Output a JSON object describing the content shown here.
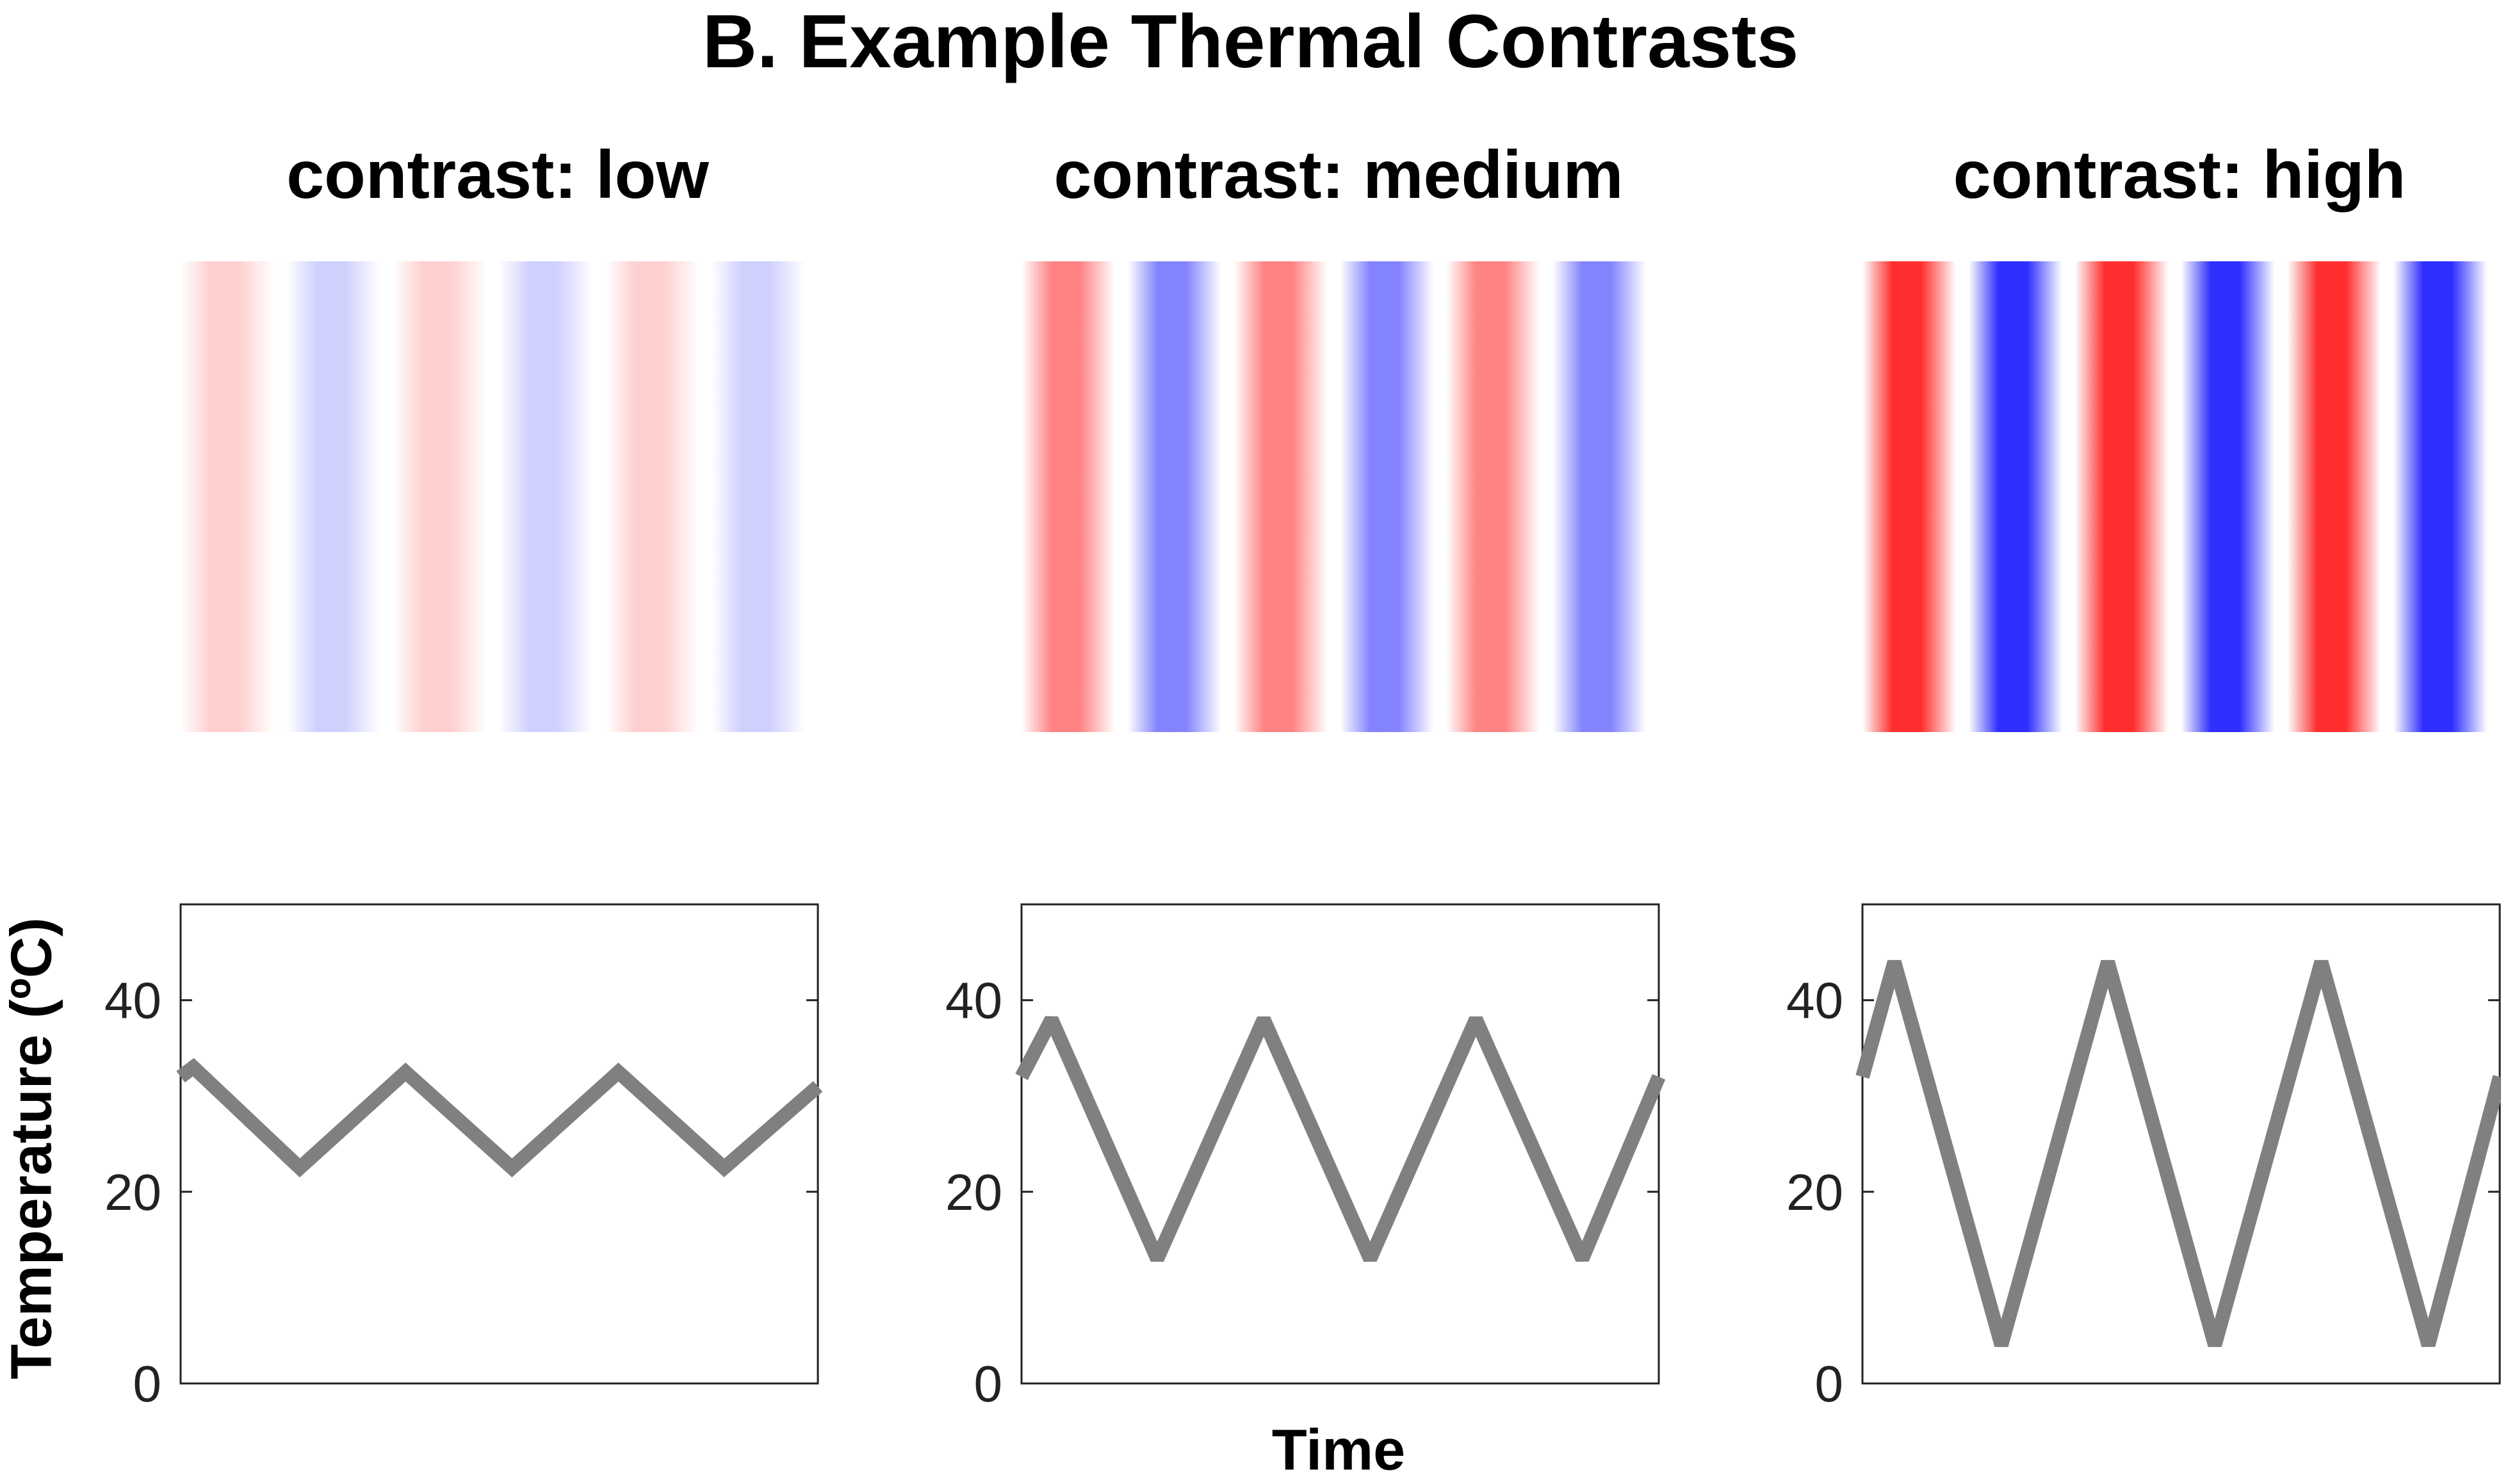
{
  "figure_title": "B. Example Thermal Contrasts",
  "colors": {
    "warm": "#ff2a2a",
    "cool": "#2a2aff",
    "line": "#808080",
    "axis": "#222222"
  },
  "panels": [
    {
      "title": "contrast: low",
      "stripe_opacity": 0.22
    },
    {
      "title": "contrast: medium",
      "stripe_opacity": 0.58
    },
    {
      "title": "contrast: high",
      "stripe_opacity": 0.98
    }
  ],
  "chart_data": [
    {
      "type": "line",
      "title": "contrast: low",
      "ylabel": "Temperature (ºC)",
      "xlabel": "",
      "ylim": [
        0,
        50
      ],
      "yticks": [
        "0",
        "20",
        "40"
      ],
      "grid": false,
      "series": [
        {
          "x": [
            0,
            0.02,
            0.187,
            0.353,
            0.52,
            0.687,
            0.853,
            1.0
          ],
          "values": [
            32,
            33,
            22.5,
            32.5,
            22.5,
            32.5,
            22.5,
            31
          ]
        }
      ]
    },
    {
      "type": "line",
      "title": "contrast: medium",
      "ylabel": "",
      "xlabel": "Time",
      "ylim": [
        0,
        50
      ],
      "yticks": [
        "0",
        "20",
        "40"
      ],
      "grid": false,
      "series": [
        {
          "x": [
            0,
            0.047,
            0.213,
            0.38,
            0.547,
            0.713,
            0.88,
            1.0
          ],
          "values": [
            32,
            38,
            13,
            38,
            13,
            38,
            13,
            32
          ]
        }
      ]
    },
    {
      "type": "line",
      "title": "contrast: high",
      "ylabel": "",
      "xlabel": "",
      "ylim": [
        0,
        50
      ],
      "yticks": [
        "0",
        "20",
        "40"
      ],
      "grid": false,
      "series": [
        {
          "x": [
            0,
            0.05,
            0.218,
            0.385,
            0.553,
            0.72,
            0.888,
            1.0
          ],
          "values": [
            32,
            44,
            4,
            44,
            4,
            44,
            4,
            32
          ]
        }
      ]
    }
  ]
}
